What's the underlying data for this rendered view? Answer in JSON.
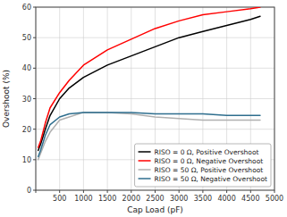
{
  "chart_data": {
    "type": "line",
    "xlabel": "Cap Load (pF)",
    "ylabel": "Overshoot (%)",
    "x": [
      50,
      100,
      200,
      300,
      500,
      700,
      1000,
      1500,
      2000,
      2500,
      3000,
      3500,
      4000,
      4500,
      4700
    ],
    "series": [
      {
        "name": "RISO = 0 Ω, Positive Overshoot",
        "color": "#000000",
        "values": [
          13.0,
          15.0,
          20.0,
          24.5,
          30.0,
          33.5,
          37.0,
          41.0,
          44.0,
          47.0,
          50.0,
          52.0,
          54.0,
          56.0,
          57.0
        ]
      },
      {
        "name": "RISO = 0 Ω, Negative Overshoot",
        "color": "#ff0000",
        "values": [
          14.0,
          16.0,
          22.0,
          27.0,
          32.0,
          36.0,
          41.0,
          46.0,
          49.5,
          53.0,
          55.5,
          57.5,
          58.5,
          59.5,
          60.0
        ]
      },
      {
        "name": "RISO = 50 Ω, Positive Overshoot",
        "color": "#b0b0b0",
        "values": [
          10.0,
          12.0,
          16.0,
          19.0,
          23.0,
          24.0,
          25.5,
          25.5,
          25.0,
          24.0,
          23.5,
          23.0,
          23.0,
          23.0,
          23.0
        ]
      },
      {
        "name": "RISO = 50 Ω, Negative Overshoot",
        "color": "#2e6e8e",
        "values": [
          11.0,
          13.0,
          18.0,
          21.5,
          24.0,
          25.0,
          25.5,
          25.5,
          25.5,
          25.0,
          25.0,
          25.0,
          24.5,
          24.5,
          24.5
        ]
      }
    ],
    "xlim": [
      0,
      5000
    ],
    "ylim": [
      0,
      60
    ],
    "xticks": [
      {
        "value": 0,
        "label": null
      },
      500,
      1000,
      1500,
      2000,
      2500,
      3000,
      3500,
      4000,
      4500,
      5000
    ],
    "yticks": [
      0,
      10,
      20,
      30,
      40,
      50,
      60
    ],
    "grid": true,
    "legend": "lower right"
  }
}
